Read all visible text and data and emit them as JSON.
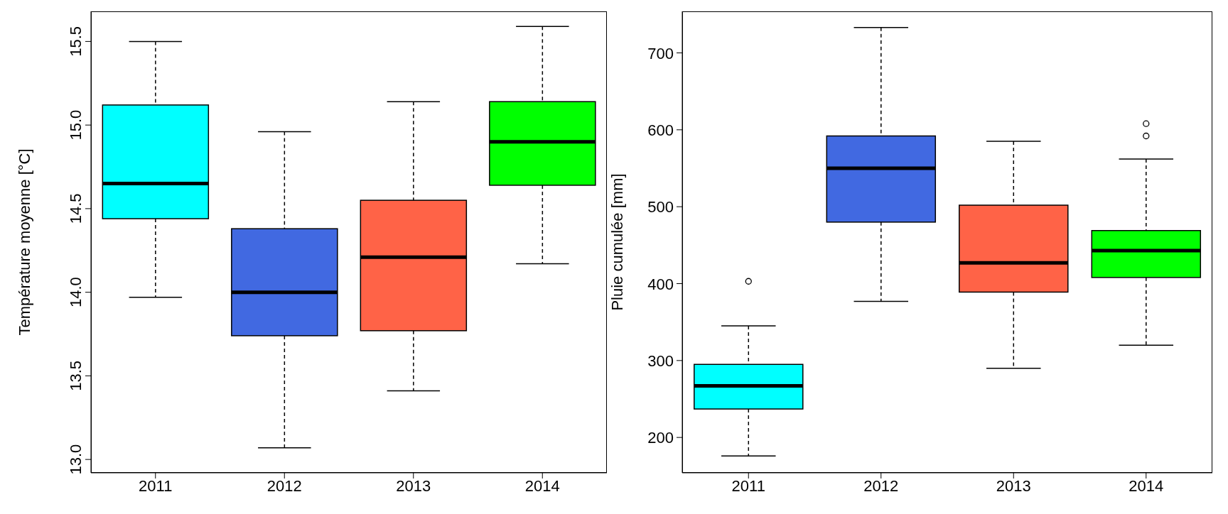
{
  "chart_data": [
    {
      "type": "box",
      "ylabel": "Température moyenne [°C]",
      "categories": [
        "2011",
        "2012",
        "2013",
        "2014"
      ],
      "colors": [
        "#00ffff",
        "#4169e1",
        "#ff6347",
        "#00ff00"
      ],
      "ylim": [
        12.92,
        15.68
      ],
      "yticks": [
        {
          "value": 13,
          "label": "13.0"
        },
        13.5,
        {
          "value": 14,
          "label": "14.0"
        },
        14.5,
        {
          "value": 15,
          "label": "15.0"
        },
        15.5
      ],
      "boxes": [
        {
          "low": 13.97,
          "q1": 14.44,
          "median": 14.65,
          "q3": 15.12,
          "high": 15.5
        },
        {
          "low": 13.07,
          "q1": 13.74,
          "median": 14.0,
          "q3": 14.38,
          "high": 14.96
        },
        {
          "low": 13.41,
          "q1": 13.77,
          "median": 14.21,
          "q3": 14.55,
          "high": 15.14
        },
        {
          "low": 14.17,
          "q1": 14.64,
          "median": 14.9,
          "q3": 15.14,
          "high": 15.59
        }
      ]
    },
    {
      "type": "box",
      "ylabel": "Pluie cumulée [mm]",
      "categories": [
        "2011",
        "2012",
        "2013",
        "2014"
      ],
      "colors": [
        "#00ffff",
        "#4169e1",
        "#ff6347",
        "#00ff00"
      ],
      "ylim": [
        154,
        754
      ],
      "yticks": [
        200,
        300,
        400,
        500,
        600,
        700
      ],
      "boxes": [
        {
          "low": 176,
          "q1": 237,
          "median": 267,
          "q3": 295,
          "high": 345,
          "outliers": [
            403
          ]
        },
        {
          "low": 377,
          "q1": 480,
          "median": 550,
          "q3": 592,
          "high": 733
        },
        {
          "low": 290,
          "q1": 389,
          "median": 427,
          "q3": 502,
          "high": 585
        },
        {
          "low": 320,
          "q1": 408,
          "median": 443,
          "q3": 469,
          "high": 562,
          "outliers": [
            592,
            608
          ]
        }
      ]
    }
  ]
}
